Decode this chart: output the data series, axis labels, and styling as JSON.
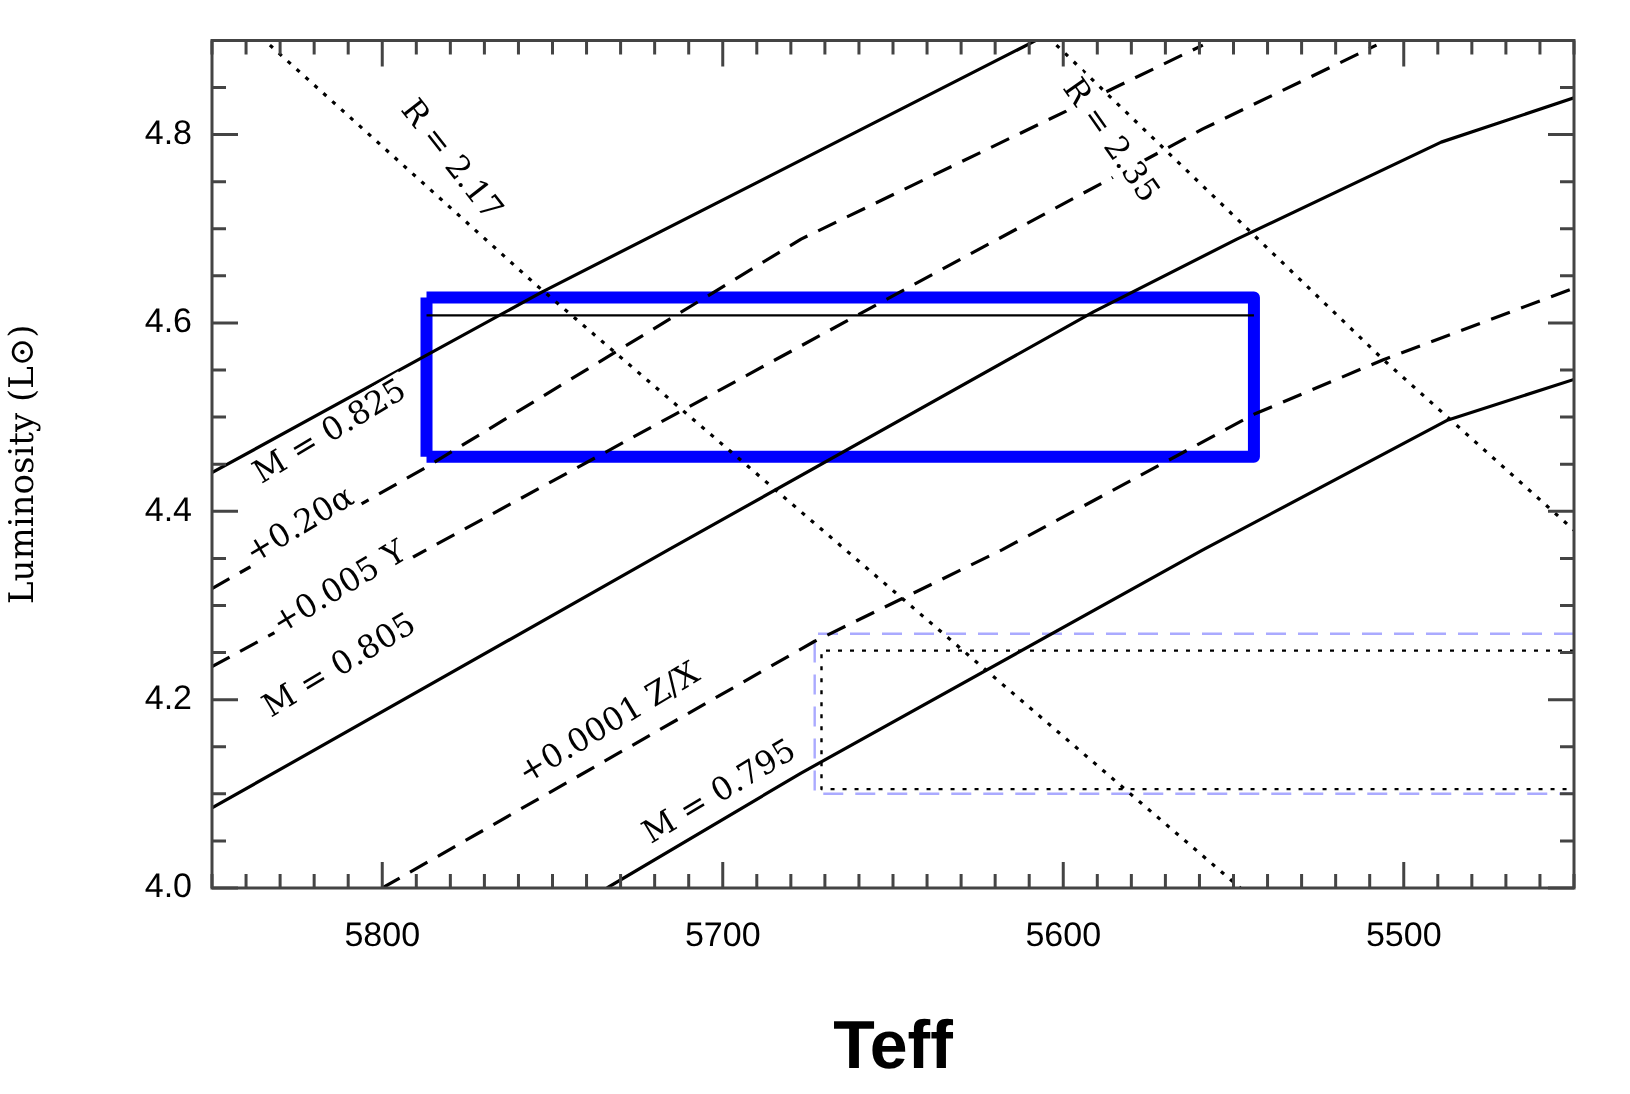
{
  "chart_data": {
    "type": "line",
    "xlabel": "Teff",
    "ylabel": "Luminosity (L⊙)",
    "xlim": [
      5850,
      5450
    ],
    "ylim": [
      4.0,
      4.9
    ],
    "xticks": [
      {
        "value": 5850,
        "label": null
      },
      {
        "value": 5840,
        "label": null
      },
      {
        "value": 5830,
        "label": null
      },
      {
        "value": 5820,
        "label": null
      },
      {
        "value": 5810,
        "label": null
      },
      5800,
      {
        "value": 5790,
        "label": null
      },
      {
        "value": 5780,
        "label": null
      },
      {
        "value": 5770,
        "label": null
      },
      {
        "value": 5760,
        "label": null
      },
      {
        "value": 5750,
        "label": null
      },
      {
        "value": 5740,
        "label": null
      },
      {
        "value": 5730,
        "label": null
      },
      {
        "value": 5720,
        "label": null
      },
      {
        "value": 5710,
        "label": null
      },
      5700,
      {
        "value": 5690,
        "label": null
      },
      {
        "value": 5680,
        "label": null
      },
      {
        "value": 5670,
        "label": null
      },
      {
        "value": 5660,
        "label": null
      },
      {
        "value": 5650,
        "label": null
      },
      {
        "value": 5640,
        "label": null
      },
      {
        "value": 5630,
        "label": null
      },
      {
        "value": 5620,
        "label": null
      },
      {
        "value": 5610,
        "label": null
      },
      5600,
      {
        "value": 5590,
        "label": null
      },
      {
        "value": 5580,
        "label": null
      },
      {
        "value": 5570,
        "label": null
      },
      {
        "value": 5560,
        "label": null
      },
      {
        "value": 5550,
        "label": null
      },
      {
        "value": 5540,
        "label": null
      },
      {
        "value": 5530,
        "label": null
      },
      {
        "value": 5520,
        "label": null
      },
      {
        "value": 5510,
        "label": null
      },
      5500,
      {
        "value": 5490,
        "label": null
      },
      {
        "value": 5480,
        "label": null
      },
      {
        "value": 5470,
        "label": null
      },
      {
        "value": 5460,
        "label": null
      },
      {
        "value": 5450,
        "label": null
      }
    ],
    "yticks": [
      {
        "value": 4.0,
        "label": "4.0"
      },
      {
        "value": 4.05,
        "label": null
      },
      {
        "value": 4.1,
        "label": null
      },
      {
        "value": 4.15,
        "label": null
      },
      {
        "value": 4.2,
        "label": "4.2"
      },
      {
        "value": 4.25,
        "label": null
      },
      {
        "value": 4.3,
        "label": null
      },
      {
        "value": 4.35,
        "label": null
      },
      {
        "value": 4.4,
        "label": "4.4"
      },
      {
        "value": 4.45,
        "label": null
      },
      {
        "value": 4.5,
        "label": null
      },
      {
        "value": 4.55,
        "label": null
      },
      {
        "value": 4.6,
        "label": "4.6"
      },
      {
        "value": 4.65,
        "label": null
      },
      {
        "value": 4.7,
        "label": null
      },
      {
        "value": 4.75,
        "label": null
      },
      {
        "value": 4.8,
        "label": "4.8"
      },
      {
        "value": 4.85,
        "label": null
      },
      {
        "value": 4.9,
        "label": null
      }
    ],
    "grid": false,
    "legend": false,
    "marker": "none",
    "series": [
      {
        "color": "#000000",
        "line_style": "solid",
        "x": [
          5850,
          5753,
          5608
        ],
        "values": [
          4.441,
          4.633,
          4.9
        ]
      },
      {
        "color": "#000000",
        "line_style": "dashed",
        "x": [
          5850,
          5787,
          5677,
          5559
        ],
        "values": [
          4.318,
          4.447,
          4.689,
          4.895
        ]
      },
      {
        "color": "#000000",
        "line_style": "dashed",
        "x": [
          5850,
          5714,
          5630,
          5559,
          5508
        ],
        "values": [
          4.235,
          4.503,
          4.668,
          4.806,
          4.895
        ]
      },
      {
        "color": "#000000",
        "line_style": "solid",
        "x": [
          5850,
          5716,
          5591,
          5549,
          5489,
          5450
        ],
        "values": [
          4.085,
          4.359,
          4.612,
          4.689,
          4.792,
          4.839
        ]
      },
      {
        "color": "#000000",
        "line_style": "dashed",
        "x": [
          5800,
          5673,
          5618,
          5544,
          5506,
          5450
        ],
        "values": [
          4.0,
          4.262,
          4.359,
          4.503,
          4.561,
          4.637
        ]
      },
      {
        "color": "#000000",
        "line_style": "solid",
        "x": [
          5734,
          5677,
          5559,
          5487,
          5450
        ],
        "values": [
          4.0,
          4.122,
          4.359,
          4.497,
          4.54
        ]
      },
      {
        "color": "#000000",
        "line_style": "dotted",
        "x": [
          5833,
          5755,
          5548
        ],
        "values": [
          4.895,
          4.641,
          4.0
        ]
      },
      {
        "color": "#000000",
        "line_style": "dotted",
        "x": [
          5602,
          5506,
          5450
        ],
        "values": [
          4.895,
          4.561,
          4.38
        ]
      },
      {
        "color": "#aaaaff",
        "line_style": "dashed",
        "x": [
          5450,
          5673,
          5673,
          5450
        ],
        "values": [
          4.27,
          4.27,
          4.1,
          4.1
        ]
      },
      {
        "color": "#000000",
        "line_style": "dotted",
        "x": [
          5450,
          5671,
          5671,
          5450
        ],
        "values": [
          4.252,
          4.252,
          4.105,
          4.105
        ]
      },
      {
        "color": "#000000",
        "line_style": "solid",
        "x": [
          5787,
          5544
        ],
        "values": [
          4.608,
          4.608
        ]
      },
      {
        "color": "#0000ff",
        "line_style": "solid",
        "x": [
          5787,
          5544,
          5544,
          5787
        ],
        "values": [
          4.627,
          4.627,
          4.458,
          4.458
        ]
      },
      {
        "color": "#0000ff",
        "line_style": "solid",
        "x": [
          5787,
          5787
        ],
        "values": [
          4.458,
          4.627
        ]
      }
    ],
    "annotations": [
      "M = 0.825",
      "+0.20α",
      "+0.005 Y",
      "M = 0.805",
      "+0.0001 Z/X",
      "M = 0.795",
      "R = 2.17",
      "R = 2.35"
    ]
  }
}
